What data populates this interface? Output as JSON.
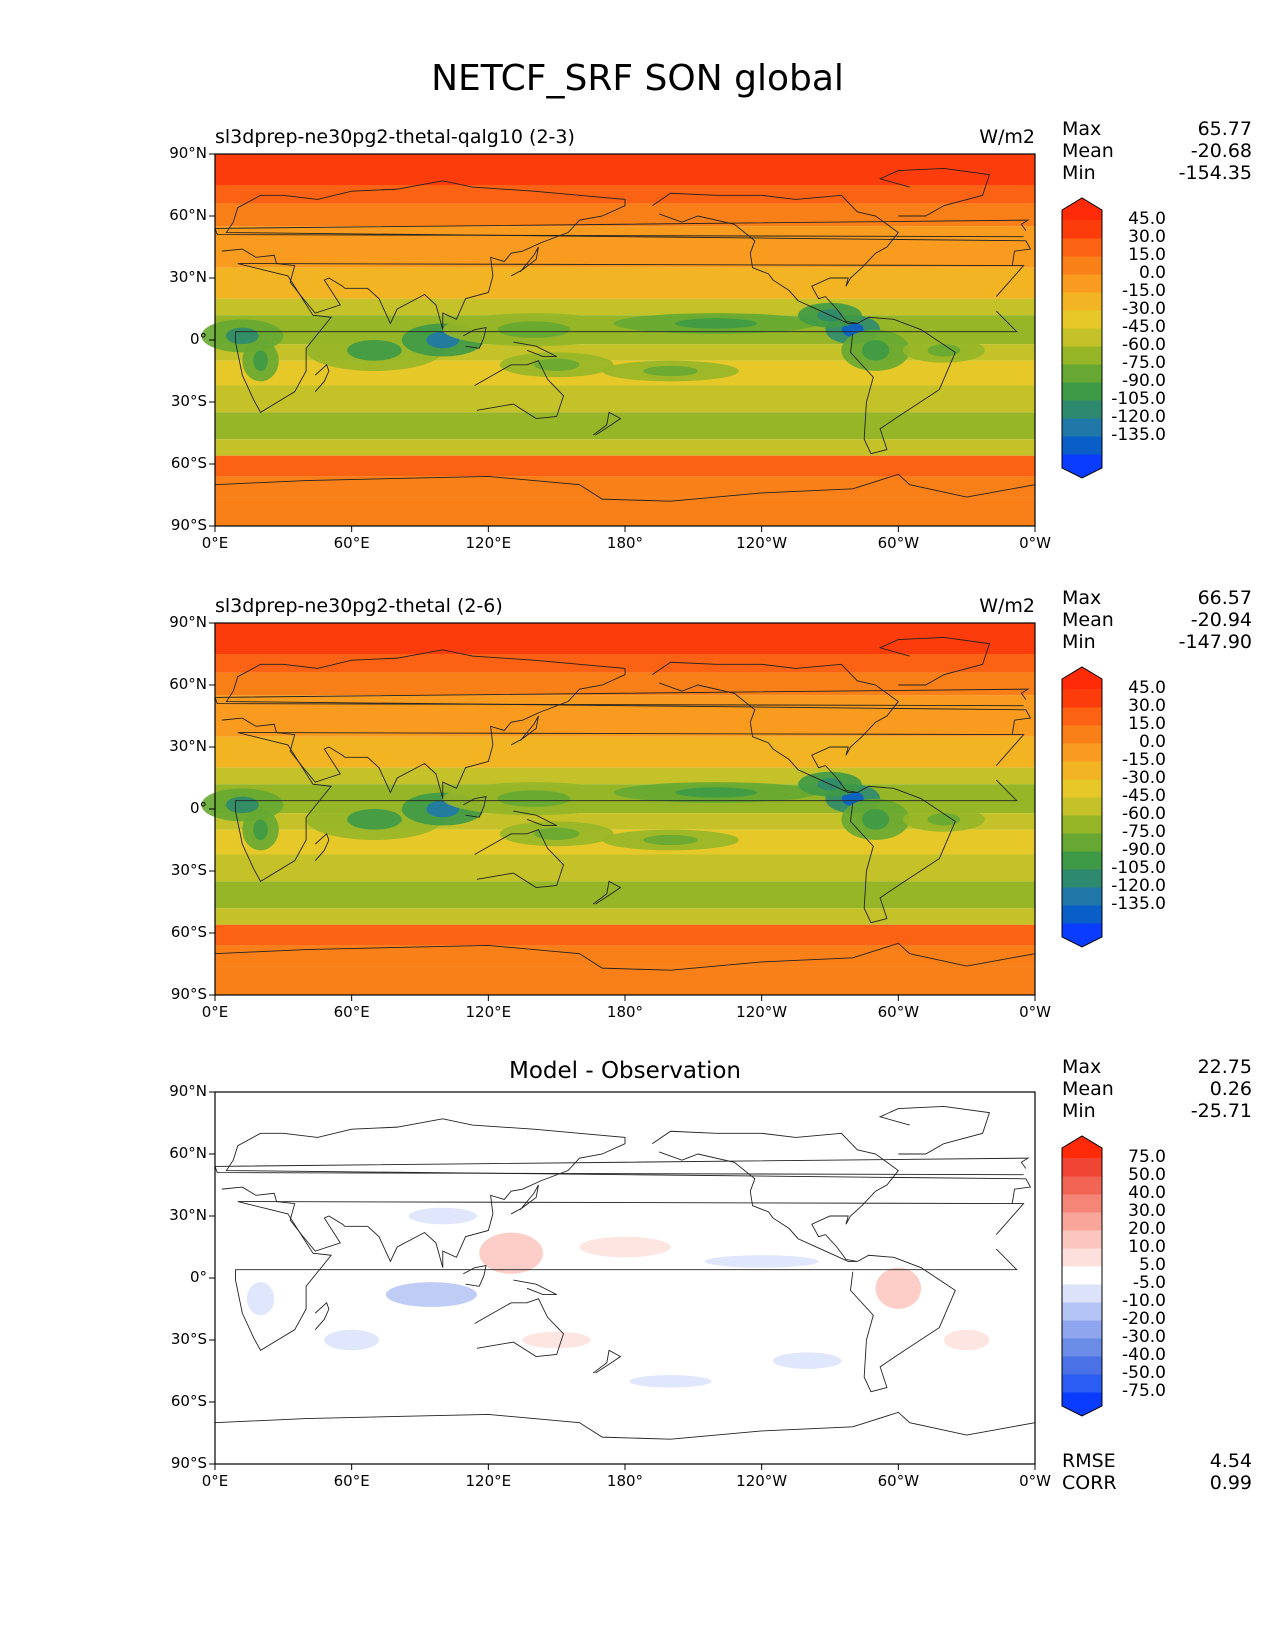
{
  "title": "NETCF_SRF SON global",
  "panels": [
    {
      "title": "sl3dprep-ne30pg2-thetal-qalg10 (2-3)",
      "units": "W/m2",
      "stats": {
        "max_label": "Max",
        "max": "65.77",
        "mean_label": "Mean",
        "mean": "-20.68",
        "min_label": "Min",
        "min": "-154.35"
      },
      "colorbar_labels": [
        "45.0",
        "30.0",
        "15.0",
        "0.0",
        "-15.0",
        "-30.0",
        "-45.0",
        "-60.0",
        "-75.0",
        "-90.0",
        "-105.0",
        "-120.0",
        "-135.0"
      ]
    },
    {
      "title": "sl3dprep-ne30pg2-thetal (2-6)",
      "units": "W/m2",
      "stats": {
        "max_label": "Max",
        "max": "66.57",
        "mean_label": "Mean",
        "mean": "-20.94",
        "min_label": "Min",
        "min": "-147.90"
      },
      "colorbar_labels": [
        "45.0",
        "30.0",
        "15.0",
        "0.0",
        "-15.0",
        "-30.0",
        "-45.0",
        "-60.0",
        "-75.0",
        "-90.0",
        "-105.0",
        "-120.0",
        "-135.0"
      ]
    },
    {
      "title": "Model - Observation",
      "units": "",
      "stats": {
        "max_label": "Max",
        "max": "22.75",
        "mean_label": "Mean",
        "mean": "0.26",
        "min_label": "Min",
        "min": "-25.71"
      },
      "colorbar_labels": [
        "75.0",
        "50.0",
        "40.0",
        "30.0",
        "20.0",
        "10.0",
        "5.0",
        "-5.0",
        "-10.0",
        "-20.0",
        "-30.0",
        "-40.0",
        "-50.0",
        "-75.0"
      ],
      "extra": {
        "rmse_label": "RMSE",
        "rmse": "4.54",
        "corr_label": "CORR",
        "corr": "0.99"
      }
    }
  ],
  "axes": {
    "yticks": [
      "90°N",
      "60°N",
      "30°N",
      "0°",
      "30°S",
      "60°S",
      "90°S"
    ],
    "xticks": [
      "0°E",
      "60°E",
      "120°E",
      "180°",
      "120°W",
      "60°W",
      "0°W"
    ]
  },
  "colors": {
    "field": [
      "#0a3cff",
      "#0a5ec8",
      "#1f78a8",
      "#2e8a6e",
      "#3e9a46",
      "#66a832",
      "#96b628",
      "#c4c228",
      "#e6c828",
      "#f2b423",
      "#f89b1e",
      "#f98018",
      "#fb6213",
      "#fd3c0c",
      "#ff2a08"
    ],
    "diff": [
      "#0a3cff",
      "#2b5cf4",
      "#4a72e6",
      "#6a8be6",
      "#8ea6ee",
      "#b4c4f4",
      "#dbe2fa",
      "#ffffff",
      "#fde0dc",
      "#fbc6bd",
      "#f8a699",
      "#f58677",
      "#f26554",
      "#f04434",
      "#ff2a08"
    ]
  }
}
